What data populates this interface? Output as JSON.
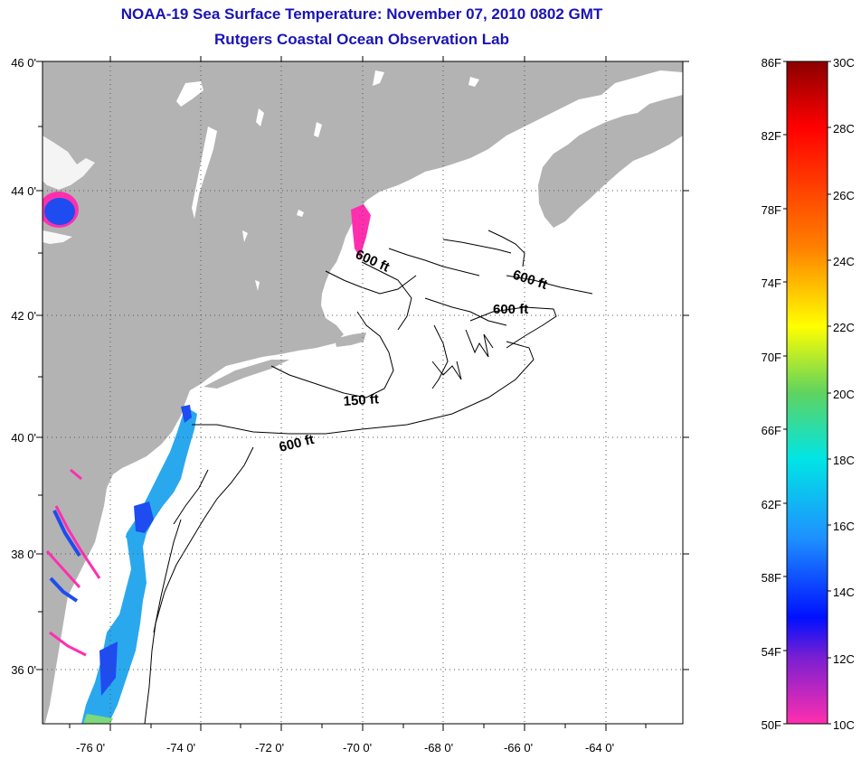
{
  "header": {
    "title": "NOAA-19 Sea Surface Temperature:  November 07, 2010 0802 GMT",
    "subtitle": "Rutgers Coastal Ocean Observation Lab"
  },
  "map": {
    "longitude_labels": [
      "-76 0'",
      "-74 0'",
      "-72 0'",
      "-70 0'",
      "-68 0'",
      "-66 0'",
      "-64 0'"
    ],
    "latitude_labels": [
      "46 0'",
      "44 0'",
      "42 0'",
      "40 0'",
      "38 0'",
      "36 0'"
    ],
    "contour_labels": [
      "600 ft",
      "600 ft",
      "600 ft",
      "150 ft",
      "600 ft"
    ],
    "colors": {
      "land": "#b3b3b3",
      "ocean": "#ffffff",
      "sst_cool": "#ff2fae",
      "sst_mid": "#1e4cf0",
      "sst_warm": "#2aa8ee"
    }
  },
  "colorbar": {
    "fahrenheit_labels": [
      "86F",
      "82F",
      "78F",
      "74F",
      "70F",
      "66F",
      "62F",
      "58F",
      "54F",
      "50F"
    ],
    "celsius_labels": [
      "30C",
      "28C",
      "26C",
      "24C",
      "22C",
      "20C",
      "18C",
      "16C",
      "14C",
      "12C",
      "10C"
    ],
    "gradient_stops": [
      "#8b0000",
      "#ff0000",
      "#ff7f00",
      "#ffff00",
      "#5fd35f",
      "#00e5e5",
      "#1e90ff",
      "#0010ff",
      "#7a1fd1",
      "#ff2fae"
    ]
  }
}
